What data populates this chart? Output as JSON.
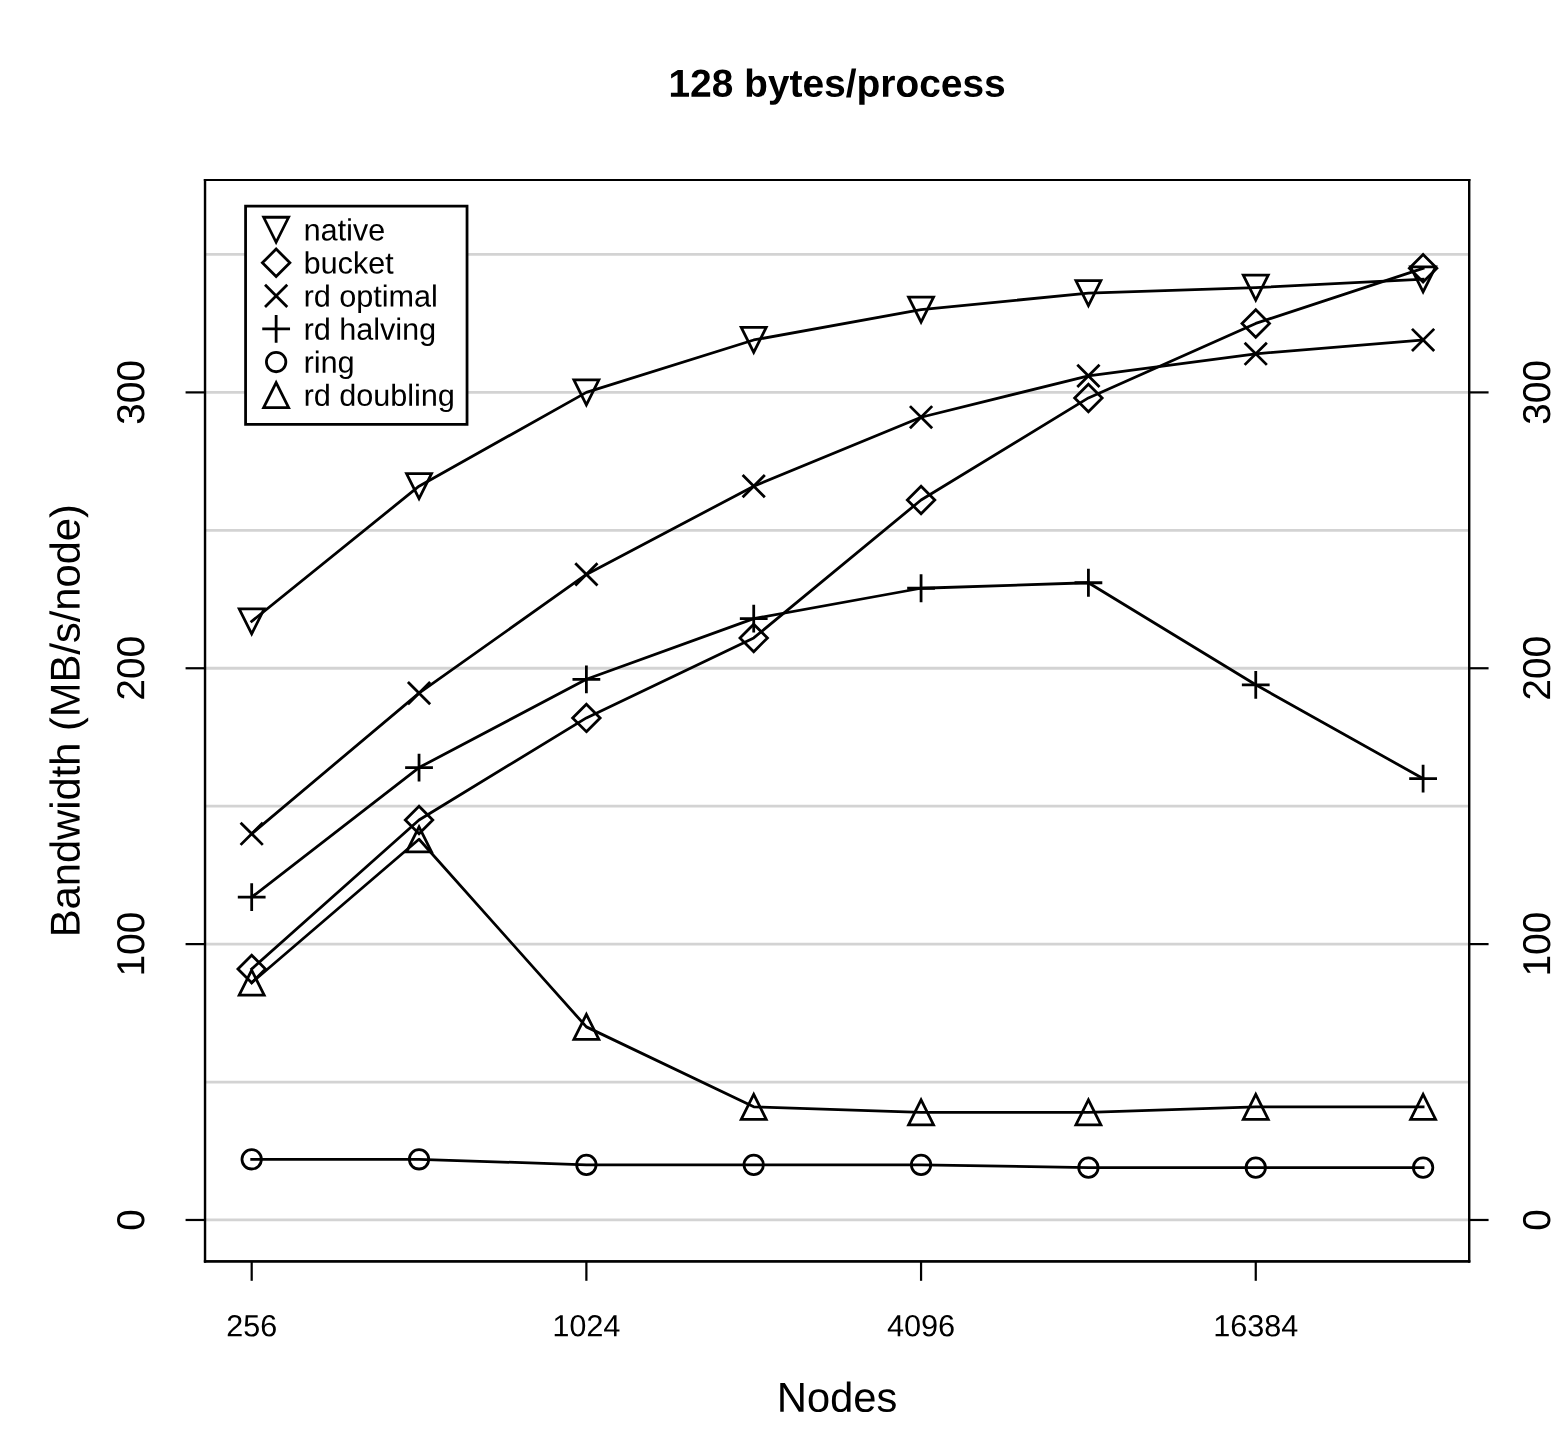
{
  "chart_data": {
    "type": "line",
    "title": "128 bytes/process",
    "xlabel": "Nodes",
    "ylabel": "Bandwidth (MB/s/node)",
    "x": [
      256,
      512,
      1024,
      2048,
      4096,
      8192,
      16384,
      32768
    ],
    "log": "x",
    "xlim": [
      211,
      39650
    ],
    "xticks": [
      256,
      1024,
      4096,
      16384
    ],
    "ylim": [
      -15,
      377
    ],
    "yticks": [
      0,
      100,
      200,
      300
    ],
    "y2lim": [
      -15,
      377
    ],
    "y2ticks": [
      0,
      100,
      200,
      300
    ],
    "legend": "top left",
    "ref_lines": [
      {
        "axis": "y",
        "value": 0,
        "color": "#d3d3d3"
      },
      {
        "axis": "y",
        "value": 50,
        "color": "#d3d3d3"
      },
      {
        "axis": "y",
        "value": 100,
        "color": "#d3d3d3"
      },
      {
        "axis": "y",
        "value": 150,
        "color": "#d3d3d3"
      },
      {
        "axis": "y",
        "value": 200,
        "color": "#d3d3d3"
      },
      {
        "axis": "y",
        "value": 250,
        "color": "#d3d3d3"
      },
      {
        "axis": "y",
        "value": 300,
        "color": "#d3d3d3"
      },
      {
        "axis": "y",
        "value": 350,
        "color": "#d3d3d3"
      }
    ],
    "series": [
      {
        "name": "native",
        "color": "#000000",
        "marker": "triangle_down",
        "values": [
          217,
          266,
          300,
          319,
          330,
          336,
          338,
          341
        ]
      },
      {
        "name": "bucket",
        "color": "#000000",
        "marker": "diamond",
        "values": [
          91,
          145,
          182,
          211,
          261,
          298,
          325,
          345
        ]
      },
      {
        "name": "rd optimal",
        "color": "#000000",
        "marker": "cross",
        "values": [
          140,
          191,
          234,
          266,
          291,
          306,
          314,
          319
        ]
      },
      {
        "name": "rd halving",
        "color": "#000000",
        "marker": "plus",
        "values": [
          117,
          164,
          196,
          218,
          229,
          231,
          194,
          160
        ]
      },
      {
        "name": "ring",
        "color": "#000000",
        "marker": "circle",
        "values": [
          22,
          22,
          20,
          20,
          20,
          19,
          19,
          19
        ]
      },
      {
        "name": "rd doubling",
        "color": "#000000",
        "marker": "triangle",
        "values": [
          86,
          138,
          70,
          41,
          39,
          39,
          41,
          41
        ]
      }
    ]
  }
}
